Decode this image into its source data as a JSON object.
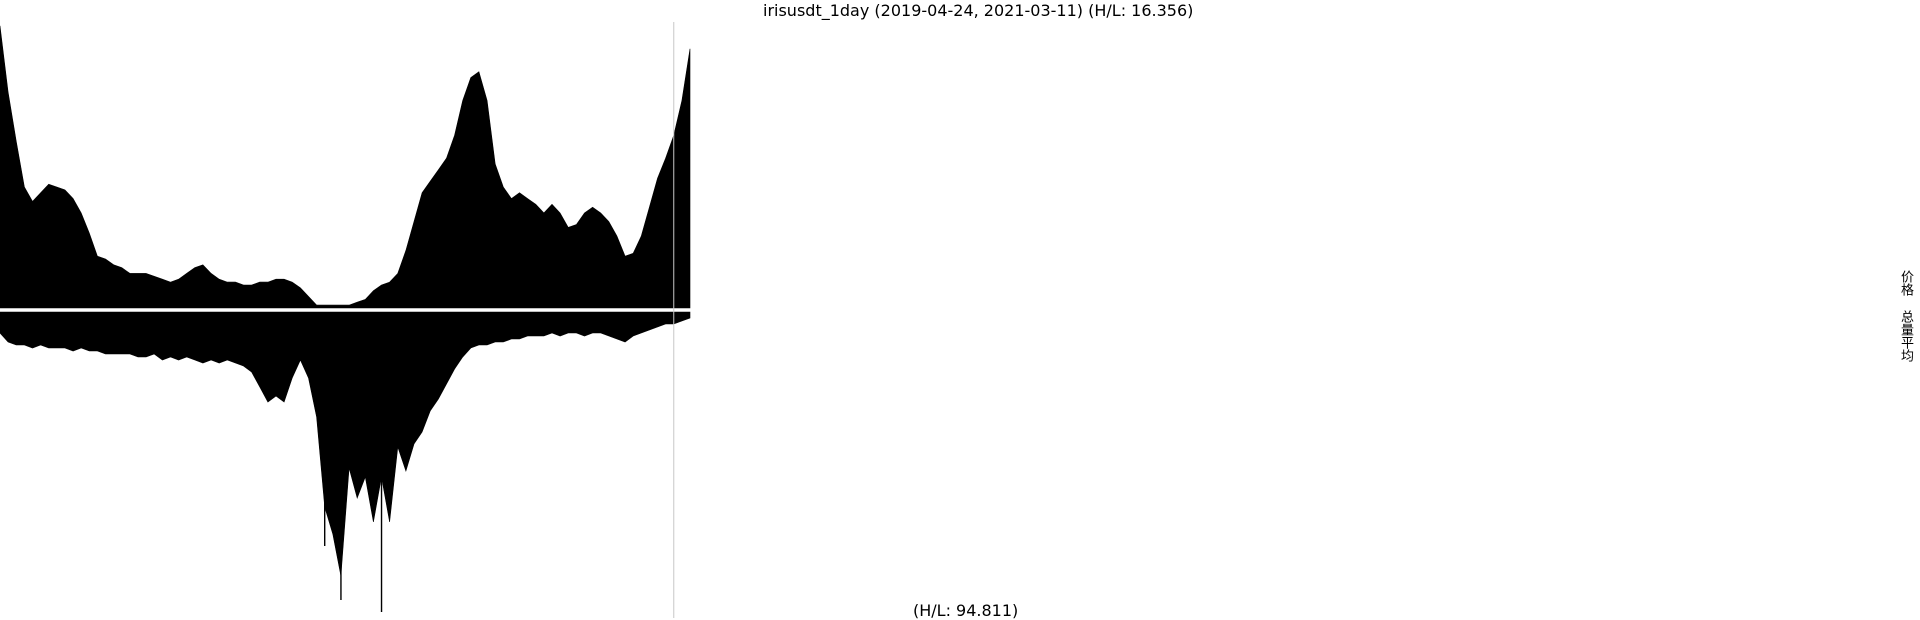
{
  "chart_data": {
    "type": "area",
    "title": "irisusdt_1day (2019-04-24, 2021-03-11) (H/L: 16.356)",
    "footer_label": "(H/L: 94.811)",
    "x_range": [
      "2019-04-24",
      "2021-03-11"
    ],
    "grid": false,
    "legend_position": "right",
    "series": [
      {
        "name": "价格",
        "direction": "up",
        "hl_ratio": 16.356,
        "values": [
          0.98,
          0.75,
          0.58,
          0.42,
          0.37,
          0.4,
          0.43,
          0.42,
          0.41,
          0.38,
          0.33,
          0.26,
          0.18,
          0.17,
          0.15,
          0.14,
          0.12,
          0.12,
          0.12,
          0.11,
          0.1,
          0.09,
          0.1,
          0.12,
          0.14,
          0.15,
          0.12,
          0.1,
          0.09,
          0.09,
          0.08,
          0.08,
          0.09,
          0.09,
          0.1,
          0.1,
          0.09,
          0.07,
          0.04,
          0.01,
          0.01,
          0.01,
          0.01,
          0.01,
          0.02,
          0.03,
          0.06,
          0.08,
          0.09,
          0.12,
          0.2,
          0.3,
          0.4,
          0.44,
          0.48,
          0.52,
          0.6,
          0.72,
          0.8,
          0.82,
          0.72,
          0.5,
          0.42,
          0.38,
          0.4,
          0.38,
          0.36,
          0.33,
          0.36,
          0.33,
          0.28,
          0.29,
          0.33,
          0.35,
          0.33,
          0.3,
          0.25,
          0.18,
          0.19,
          0.25,
          0.35,
          0.45,
          0.52,
          0.6,
          0.72,
          0.9
        ]
      },
      {
        "name": "总量平均",
        "direction": "down",
        "hl_ratio": 94.811,
        "values": [
          0.07,
          0.1,
          0.11,
          0.11,
          0.12,
          0.11,
          0.12,
          0.12,
          0.12,
          0.13,
          0.12,
          0.13,
          0.13,
          0.14,
          0.14,
          0.14,
          0.14,
          0.15,
          0.15,
          0.14,
          0.16,
          0.15,
          0.16,
          0.15,
          0.16,
          0.17,
          0.16,
          0.17,
          0.16,
          0.17,
          0.18,
          0.2,
          0.25,
          0.3,
          0.28,
          0.3,
          0.22,
          0.16,
          0.22,
          0.35,
          0.65,
          0.74,
          0.88,
          0.52,
          0.62,
          0.55,
          0.7,
          0.55,
          0.7,
          0.45,
          0.53,
          0.44,
          0.4,
          0.33,
          0.29,
          0.24,
          0.19,
          0.15,
          0.12,
          0.11,
          0.11,
          0.1,
          0.1,
          0.09,
          0.09,
          0.08,
          0.08,
          0.08,
          0.07,
          0.08,
          0.07,
          0.07,
          0.08,
          0.07,
          0.07,
          0.08,
          0.09,
          0.1,
          0.08,
          0.07,
          0.06,
          0.05,
          0.04,
          0.04,
          0.03,
          0.02
        ],
        "spikes": [
          {
            "index": 40,
            "value": 0.78
          },
          {
            "index": 42,
            "value": 0.96
          },
          {
            "index": 47,
            "value": 1.0
          }
        ]
      }
    ],
    "vertical_marker_index": 83
  }
}
